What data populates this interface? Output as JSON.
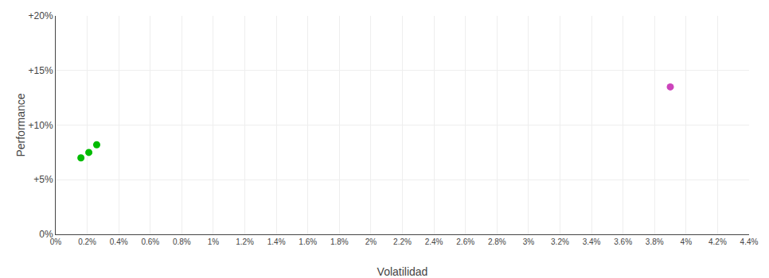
{
  "chart_data": {
    "type": "scatter",
    "xlabel": "Volatilidad",
    "ylabel": "Performance",
    "series": [
      {
        "color": "#00bb00",
        "x": [
          0.0016,
          0.0021,
          0.0026
        ],
        "values": [
          0.07,
          0.075,
          0.082
        ]
      },
      {
        "color": "#cc44bb",
        "x": [
          0.039
        ],
        "values": [
          0.135
        ]
      }
    ],
    "xlim": [
      0.0,
      0.044
    ],
    "ylim": [
      0.0,
      0.2
    ],
    "xticks": [
      {
        "value": 0.0,
        "label": "0%"
      },
      {
        "value": 0.002,
        "label": "0.2%"
      },
      {
        "value": 0.004,
        "label": "0.4%"
      },
      {
        "value": 0.006,
        "label": "0.6%"
      },
      {
        "value": 0.008,
        "label": "0.8%"
      },
      {
        "value": 0.01,
        "label": "1%"
      },
      {
        "value": 0.012,
        "label": "1.2%"
      },
      {
        "value": 0.014,
        "label": "1.4%"
      },
      {
        "value": 0.016,
        "label": "1.6%"
      },
      {
        "value": 0.018,
        "label": "1.8%"
      },
      {
        "value": 0.02,
        "label": "2%"
      },
      {
        "value": 0.022,
        "label": "2.2%"
      },
      {
        "value": 0.024,
        "label": "2.4%"
      },
      {
        "value": 0.026,
        "label": "2.6%"
      },
      {
        "value": 0.028,
        "label": "2.8%"
      },
      {
        "value": 0.03,
        "label": "3%"
      },
      {
        "value": 0.032,
        "label": "3.2%"
      },
      {
        "value": 0.034,
        "label": "3.4%"
      },
      {
        "value": 0.036,
        "label": "3.6%"
      },
      {
        "value": 0.038,
        "label": "3.8%"
      },
      {
        "value": 0.04,
        "label": "4%"
      },
      {
        "value": 0.042,
        "label": "4.2%"
      },
      {
        "value": 0.044,
        "label": "4.4%"
      }
    ],
    "yticks": [
      {
        "value": 0.0,
        "label": "0%"
      },
      {
        "value": 0.05,
        "label": "+5%"
      },
      {
        "value": 0.1,
        "label": "+10%"
      },
      {
        "value": 0.15,
        "label": "+15%"
      },
      {
        "value": 0.2,
        "label": "+20%"
      }
    ],
    "grid": true
  }
}
